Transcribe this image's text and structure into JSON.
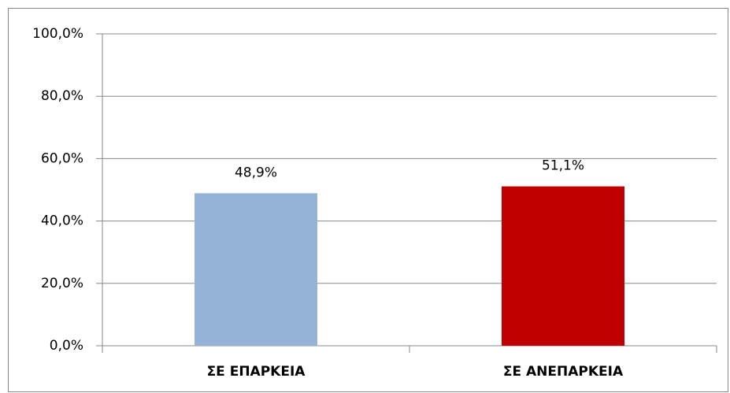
{
  "chart_data": {
    "type": "bar",
    "categories": [
      "ΣΕ ΕΠΑΡΚΕΙΑ",
      "ΣΕ ΑΝΕΠΑΡΚΕΙΑ"
    ],
    "values": [
      48.9,
      51.1
    ],
    "value_labels": [
      "48,9%",
      "51,1%"
    ],
    "colors": [
      "#95b3d7",
      "#c00000"
    ],
    "ylim": [
      0,
      100
    ],
    "yticks": [
      {
        "value": 0,
        "label": "0,0%"
      },
      {
        "value": 20,
        "label": "20,0%"
      },
      {
        "value": 40,
        "label": "40,0%"
      },
      {
        "value": 60,
        "label": "60,0%"
      },
      {
        "value": 80,
        "label": "80,0%"
      },
      {
        "value": 100,
        "label": "100,0%"
      }
    ],
    "grid": true
  }
}
